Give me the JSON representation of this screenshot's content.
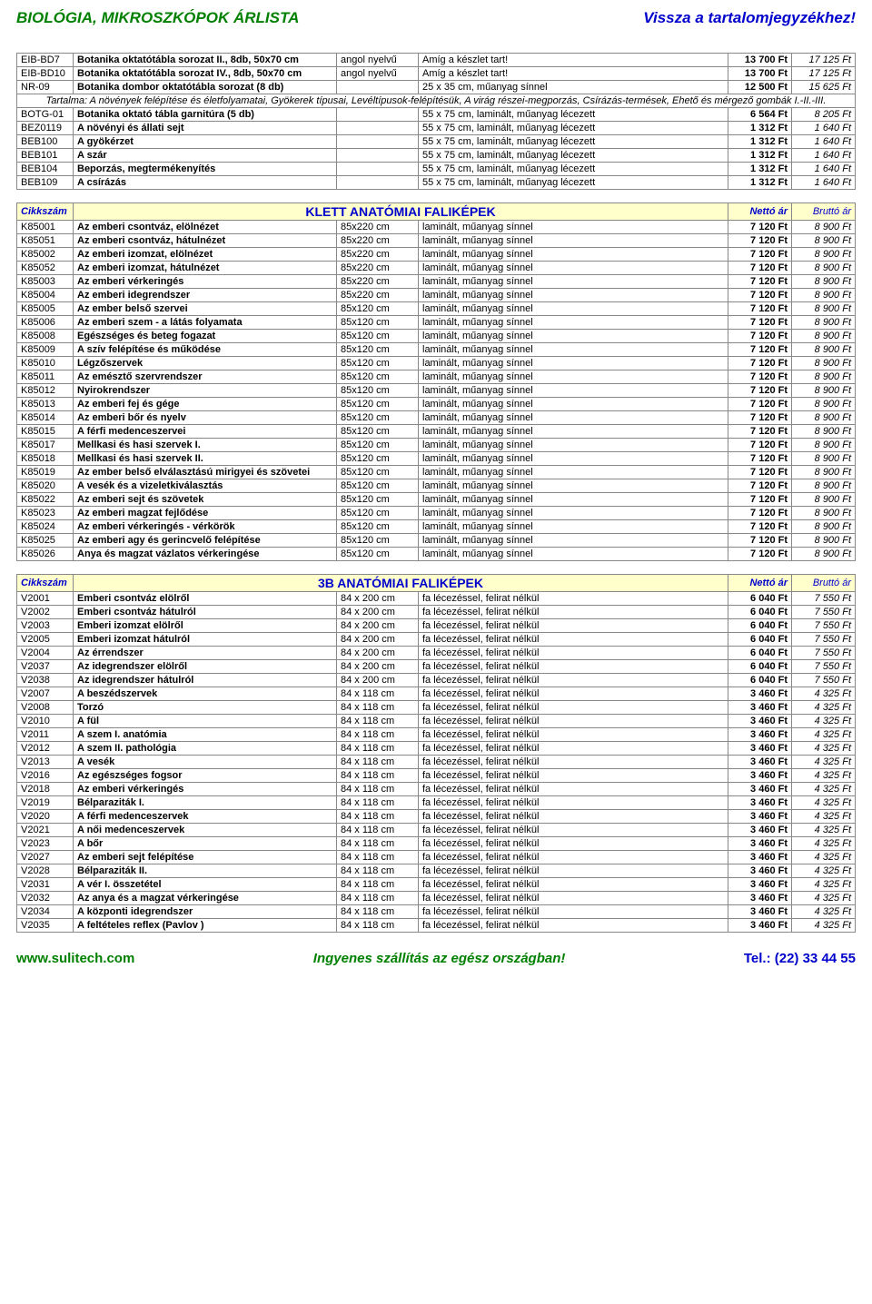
{
  "header": {
    "left": "BIOLÓGIA, MIKROSZKÓPOK ÁRLISTA",
    "right": "Vissza a tartalomjegyzékhez!"
  },
  "footer": {
    "left": "www.sulitech.com",
    "mid": "Ingyenes szállítás az egész országban!",
    "right": "Tel.: (22) 33 44 55"
  },
  "section1": {
    "rows": [
      [
        "EIB-BD7",
        "Botanika oktatótábla sorozat II., 8db, 50x70 cm",
        "angol nyelvű",
        "Amíg a készlet tart!",
        "13 700 Ft",
        "17 125 Ft"
      ],
      [
        "EIB-BD10",
        "Botanika oktatótábla sorozat IV., 8db, 50x70 cm",
        "angol nyelvű",
        "Amíg a készlet tart!",
        "13 700 Ft",
        "17 125 Ft"
      ],
      [
        "NR-09",
        "Botanika dombor oktatótábla sorozat (8 db)",
        "",
        "25 x 35 cm, műanyag sínnel",
        "12 500 Ft",
        "15 625 Ft"
      ]
    ],
    "info": "Tartalma: A növények felépítése és életfolyamatai, Gyökerek típusai, Levéltípusok-felépítésük, A virág részei-megporzás, Csírázás-termések, Ehető és mérgező gombák I.-II.-III.",
    "rows2": [
      [
        "BOTG-01",
        "Botanika oktató tábla garnitúra (5 db)",
        "",
        "55 x 75 cm, laminált, műanyag lécezett",
        "6 564 Ft",
        "8 205 Ft"
      ],
      [
        "BEZ0119",
        "A növényi és állati sejt",
        "",
        "55 x 75 cm, laminált, műanyag lécezett",
        "1 312 Ft",
        "1 640 Ft"
      ],
      [
        "BEB100",
        "A gyökérzet",
        "",
        "55 x 75 cm, laminált, műanyag lécezett",
        "1 312 Ft",
        "1 640 Ft"
      ],
      [
        "BEB101",
        "A szár",
        "",
        "55 x 75 cm, laminált, műanyag lécezett",
        "1 312 Ft",
        "1 640 Ft"
      ],
      [
        "BEB104",
        "Beporzás, megtermékenyítés",
        "",
        "55 x 75 cm, laminált, műanyag lécezett",
        "1 312 Ft",
        "1 640 Ft"
      ],
      [
        "BEB109",
        "A csírázás",
        "",
        "55 x 75 cm, laminált, műanyag lécezett",
        "1 312 Ft",
        "1 640 Ft"
      ]
    ]
  },
  "section2": {
    "head": {
      "id": "Cikkszám",
      "title": "KLETT ANATÓMIAI FALIKÉPEK",
      "net": "Nettó ár",
      "gross": "Bruttó ár"
    },
    "rows": [
      [
        "K85001",
        "Az emberi csontváz, elölnézet",
        "85x220 cm",
        "laminált, műanyag sínnel",
        "7 120 Ft",
        "8 900 Ft"
      ],
      [
        "K85051",
        "Az emberi csontváz, hátulnézet",
        "85x220 cm",
        "laminált, műanyag sínnel",
        "7 120 Ft",
        "8 900 Ft"
      ],
      [
        "K85002",
        "Az emberi izomzat, elölnézet",
        "85x220 cm",
        "laminált, műanyag sínnel",
        "7 120 Ft",
        "8 900 Ft"
      ],
      [
        "K85052",
        "Az emberi izomzat, hátulnézet",
        "85x220 cm",
        "laminált, műanyag sínnel",
        "7 120 Ft",
        "8 900 Ft"
      ],
      [
        "K85003",
        "Az emberi vérkeringés",
        "85x220 cm",
        "laminált, műanyag sínnel",
        "7 120 Ft",
        "8 900 Ft"
      ],
      [
        "K85004",
        "Az emberi idegrendszer",
        "85x220 cm",
        "laminált, műanyag sínnel",
        "7 120 Ft",
        "8 900 Ft"
      ],
      [
        "K85005",
        "Az ember belső szervei",
        "85x120 cm",
        "laminált, műanyag sínnel",
        "7 120 Ft",
        "8 900 Ft"
      ],
      [
        "K85006",
        "Az emberi szem - a látás folyamata",
        "85x120 cm",
        "laminált, műanyag sínnel",
        "7 120 Ft",
        "8 900 Ft"
      ],
      [
        "K85008",
        "Egészséges és beteg fogazat",
        "85x120 cm",
        "laminált, műanyag sínnel",
        "7 120 Ft",
        "8 900 Ft"
      ],
      [
        "K85009",
        "A szív felépítése és működése",
        "85x120 cm",
        "laminált, műanyag sínnel",
        "7 120 Ft",
        "8 900 Ft"
      ],
      [
        "K85010",
        "Légzőszervek",
        "85x120 cm",
        "laminált, műanyag sínnel",
        "7 120 Ft",
        "8 900 Ft"
      ],
      [
        "K85011",
        "Az emésztő szervrendszer",
        "85x120 cm",
        "laminált, műanyag sínnel",
        "7 120 Ft",
        "8 900 Ft"
      ],
      [
        "K85012",
        "Nyirokrendszer",
        "85x120 cm",
        "laminált, műanyag sínnel",
        "7 120 Ft",
        "8 900 Ft"
      ],
      [
        "K85013",
        "Az emberi fej és gége",
        "85x120 cm",
        "laminált, műanyag sínnel",
        "7 120 Ft",
        "8 900 Ft"
      ],
      [
        "K85014",
        "Az emberi bőr és nyelv",
        "85x120 cm",
        "laminált, műanyag sínnel",
        "7 120 Ft",
        "8 900 Ft"
      ],
      [
        "K85015",
        "A férfi medenceszervei",
        "85x120 cm",
        "laminált, műanyag sínnel",
        "7 120 Ft",
        "8 900 Ft"
      ],
      [
        "K85017",
        "Mellkasi és hasi szervek I.",
        "85x120 cm",
        "laminált, műanyag sínnel",
        "7 120 Ft",
        "8 900 Ft"
      ],
      [
        "K85018",
        "Mellkasi és hasi szervek II.",
        "85x120 cm",
        "laminált, műanyag sínnel",
        "7 120 Ft",
        "8 900 Ft"
      ],
      [
        "K85019",
        "Az ember belső elválasztású mirigyei és szövetei",
        "85x120 cm",
        "laminált, műanyag sínnel",
        "7 120 Ft",
        "8 900 Ft"
      ],
      [
        "K85020",
        "A vesék és a vizeletkiválasztás",
        "85x120 cm",
        "laminált, műanyag sínnel",
        "7 120 Ft",
        "8 900 Ft"
      ],
      [
        "K85022",
        "Az emberi sejt és szövetek",
        "85x120 cm",
        "laminált, műanyag sínnel",
        "7 120 Ft",
        "8 900 Ft"
      ],
      [
        "K85023",
        "Az emberi magzat fejlődése",
        "85x120 cm",
        "laminált, műanyag sínnel",
        "7 120 Ft",
        "8 900 Ft"
      ],
      [
        "K85024",
        "Az emberi vérkeringés - vérkörök",
        "85x120 cm",
        "laminált, műanyag sínnel",
        "7 120 Ft",
        "8 900 Ft"
      ],
      [
        "K85025",
        "Az emberi agy és gerincvelő felépítése",
        "85x120 cm",
        "laminált, műanyag sínnel",
        "7 120 Ft",
        "8 900 Ft"
      ],
      [
        "K85026",
        "Anya és magzat vázlatos vérkeringése",
        "85x120 cm",
        "laminált, műanyag sínnel",
        "7 120 Ft",
        "8 900 Ft"
      ]
    ]
  },
  "section3": {
    "head": {
      "id": "Cikkszám",
      "title": "3B ANATÓMIAI FALIKÉPEK",
      "net": "Nettó ár",
      "gross": "Bruttó ár"
    },
    "rows": [
      [
        "V2001",
        "Emberi csontváz elölről",
        "84 x 200 cm",
        "fa lécezéssel, felirat nélkül",
        "6 040 Ft",
        "7 550 Ft"
      ],
      [
        "V2002",
        "Emberi csontváz hátulról",
        "84 x 200 cm",
        "fa lécezéssel, felirat nélkül",
        "6 040 Ft",
        "7 550 Ft"
      ],
      [
        "V2003",
        "Emberi izomzat elölről",
        "84 x 200 cm",
        "fa lécezéssel, felirat nélkül",
        "6 040 Ft",
        "7 550 Ft"
      ],
      [
        "V2005",
        "Emberi izomzat hátulról",
        "84 x 200 cm",
        "fa lécezéssel, felirat nélkül",
        "6 040 Ft",
        "7 550 Ft"
      ],
      [
        "V2004",
        "Az érrendszer",
        "84 x 200 cm",
        "fa lécezéssel, felirat nélkül",
        "6 040 Ft",
        "7 550 Ft"
      ],
      [
        "V2037",
        "Az idegrendszer elölről",
        "84 x 200 cm",
        "fa lécezéssel, felirat nélkül",
        "6 040 Ft",
        "7 550 Ft"
      ],
      [
        "V2038",
        "Az idegrendszer hátulról",
        "84 x 200 cm",
        "fa lécezéssel, felirat nélkül",
        "6 040 Ft",
        "7 550 Ft"
      ],
      [
        "V2007",
        "A beszédszervek",
        "84 x 118 cm",
        "fa lécezéssel, felirat nélkül",
        "3 460 Ft",
        "4 325 Ft"
      ],
      [
        "V2008",
        "Torzó",
        "84 x 118 cm",
        "fa lécezéssel, felirat nélkül",
        "3 460 Ft",
        "4 325 Ft"
      ],
      [
        "V2010",
        "A fül",
        "84 x 118 cm",
        "fa lécezéssel, felirat nélkül",
        "3 460 Ft",
        "4 325 Ft"
      ],
      [
        "V2011",
        "A szem I.  anatómia",
        "84 x 118 cm",
        "fa lécezéssel, felirat nélkül",
        "3 460 Ft",
        "4 325 Ft"
      ],
      [
        "V2012",
        "A szem II.  pathológia",
        "84 x 118 cm",
        "fa lécezéssel, felirat nélkül",
        "3 460 Ft",
        "4 325 Ft"
      ],
      [
        "V2013",
        "A vesék",
        "84 x 118 cm",
        "fa lécezéssel, felirat nélkül",
        "3 460 Ft",
        "4 325 Ft"
      ],
      [
        "V2016",
        "Az egészséges fogsor",
        "84 x 118 cm",
        "fa lécezéssel, felirat nélkül",
        "3 460 Ft",
        "4 325 Ft"
      ],
      [
        "V2018",
        "Az emberi vérkeringés",
        "84 x 118 cm",
        "fa lécezéssel, felirat nélkül",
        "3 460 Ft",
        "4 325 Ft"
      ],
      [
        "V2019",
        "Bélparaziták I.",
        "84 x 118 cm",
        "fa lécezéssel, felirat nélkül",
        "3 460 Ft",
        "4 325 Ft"
      ],
      [
        "V2020",
        "A férfi medenceszervek",
        "84 x 118 cm",
        "fa lécezéssel, felirat nélkül",
        "3 460 Ft",
        "4 325 Ft"
      ],
      [
        "V2021",
        "A női medenceszervek",
        "84 x 118 cm",
        "fa lécezéssel, felirat nélkül",
        "3 460 Ft",
        "4 325 Ft"
      ],
      [
        "V2023",
        "A bőr",
        "84 x 118 cm",
        "fa lécezéssel, felirat nélkül",
        "3 460 Ft",
        "4 325 Ft"
      ],
      [
        "V2027",
        "Az emberi sejt felépítése",
        "84 x 118 cm",
        "fa lécezéssel, felirat nélkül",
        "3 460 Ft",
        "4 325 Ft"
      ],
      [
        "V2028",
        "Bélparaziták II.",
        "84 x 118 cm",
        "fa lécezéssel, felirat nélkül",
        "3 460 Ft",
        "4 325 Ft"
      ],
      [
        "V2031",
        "A vér I.  összetétel",
        "84 x 118 cm",
        "fa lécezéssel, felirat nélkül",
        "3 460 Ft",
        "4 325 Ft"
      ],
      [
        "V2032",
        "Az anya és a magzat vérkeringése",
        "84 x 118 cm",
        "fa lécezéssel, felirat nélkül",
        "3 460 Ft",
        "4 325 Ft"
      ],
      [
        "V2034",
        "A központi idegrendszer",
        "84 x 118 cm",
        "fa lécezéssel, felirat nélkül",
        "3 460 Ft",
        "4 325 Ft"
      ],
      [
        "V2035",
        "A feltételes reflex (Pavlov )",
        "84 x 118 cm",
        "fa lécezéssel, felirat nélkül",
        "3 460 Ft",
        "4 325 Ft"
      ]
    ]
  }
}
